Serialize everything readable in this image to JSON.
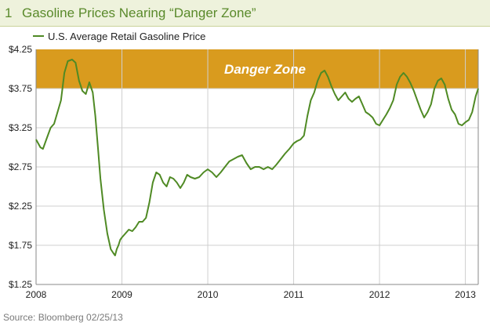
{
  "header": {
    "figure_number": "1",
    "title": "Gasoline Prices Nearing “Danger Zone”"
  },
  "source": "Source: Bloomberg   02/25/13",
  "colors": {
    "line": "#4f8a24",
    "danger_zone": "#d99b1e",
    "danger_text": "#ffffff",
    "grid": "#cfcfcf",
    "header_bg": "#eef2dc",
    "header_text": "#5a8a2b"
  },
  "chart_data": {
    "type": "line",
    "legend": "U.S. Average Retail Gasoline Price",
    "legend_position": "top-left",
    "grid": true,
    "ylim": [
      1.25,
      4.25
    ],
    "yticks": [
      1.25,
      1.75,
      2.25,
      2.75,
      3.25,
      3.75,
      4.25
    ],
    "ytick_labels": [
      "$1.25",
      "$1.75",
      "$2.25",
      "$2.75",
      "$3.25",
      "$3.75",
      "$4.25"
    ],
    "xlim": [
      2008.0,
      2013.15
    ],
    "xticks": [
      2008,
      2009,
      2010,
      2011,
      2012,
      2013
    ],
    "xtick_labels": [
      "2008",
      "2009",
      "2010",
      "2011",
      "2012",
      "2013"
    ],
    "annotations": [
      {
        "label": "Danger Zone",
        "y_from": 3.75,
        "y_to": 4.25
      }
    ],
    "series": [
      {
        "name": "U.S. Average Retail Gasoline Price",
        "x": [
          2008.0,
          2008.05,
          2008.08,
          2008.12,
          2008.17,
          2008.21,
          2008.25,
          2008.29,
          2008.33,
          2008.37,
          2008.42,
          2008.46,
          2008.5,
          2008.54,
          2008.58,
          2008.62,
          2008.66,
          2008.69,
          2008.72,
          2008.75,
          2008.79,
          2008.83,
          2008.87,
          2008.9,
          2008.92,
          2008.94,
          2008.96,
          2008.98,
          2009.0,
          2009.04,
          2009.08,
          2009.12,
          2009.16,
          2009.2,
          2009.24,
          2009.28,
          2009.32,
          2009.36,
          2009.4,
          2009.44,
          2009.48,
          2009.52,
          2009.56,
          2009.6,
          2009.64,
          2009.68,
          2009.72,
          2009.76,
          2009.8,
          2009.85,
          2009.9,
          2009.95,
          2010.0,
          2010.05,
          2010.1,
          2010.15,
          2010.2,
          2010.25,
          2010.3,
          2010.35,
          2010.4,
          2010.45,
          2010.5,
          2010.55,
          2010.6,
          2010.65,
          2010.7,
          2010.75,
          2010.8,
          2010.85,
          2010.9,
          2010.95,
          2011.0,
          2011.04,
          2011.08,
          2011.12,
          2011.16,
          2011.2,
          2011.24,
          2011.28,
          2011.32,
          2011.36,
          2011.4,
          2011.44,
          2011.48,
          2011.52,
          2011.56,
          2011.6,
          2011.64,
          2011.68,
          2011.72,
          2011.76,
          2011.8,
          2011.84,
          2011.88,
          2011.92,
          2011.96,
          2012.0,
          2012.04,
          2012.08,
          2012.12,
          2012.16,
          2012.2,
          2012.24,
          2012.28,
          2012.32,
          2012.36,
          2012.4,
          2012.44,
          2012.48,
          2012.52,
          2012.56,
          2012.6,
          2012.64,
          2012.68,
          2012.72,
          2012.76,
          2012.8,
          2012.84,
          2012.88,
          2012.92,
          2012.96,
          2013.0,
          2013.04,
          2013.08,
          2013.12,
          2013.15
        ],
        "y": [
          3.1,
          3.0,
          2.98,
          3.1,
          3.25,
          3.3,
          3.45,
          3.6,
          3.95,
          4.1,
          4.12,
          4.08,
          3.85,
          3.72,
          3.68,
          3.83,
          3.7,
          3.4,
          3.0,
          2.6,
          2.2,
          1.9,
          1.7,
          1.65,
          1.62,
          1.7,
          1.75,
          1.82,
          1.85,
          1.9,
          1.95,
          1.93,
          1.98,
          2.05,
          2.05,
          2.1,
          2.3,
          2.55,
          2.68,
          2.65,
          2.55,
          2.5,
          2.62,
          2.6,
          2.55,
          2.48,
          2.55,
          2.65,
          2.62,
          2.6,
          2.62,
          2.68,
          2.72,
          2.68,
          2.62,
          2.68,
          2.75,
          2.82,
          2.85,
          2.88,
          2.9,
          2.8,
          2.72,
          2.75,
          2.75,
          2.72,
          2.75,
          2.72,
          2.78,
          2.85,
          2.92,
          2.98,
          3.05,
          3.08,
          3.1,
          3.15,
          3.4,
          3.6,
          3.7,
          3.85,
          3.95,
          3.98,
          3.9,
          3.78,
          3.68,
          3.6,
          3.65,
          3.7,
          3.62,
          3.58,
          3.62,
          3.65,
          3.55,
          3.45,
          3.42,
          3.38,
          3.3,
          3.28,
          3.35,
          3.42,
          3.5,
          3.6,
          3.8,
          3.9,
          3.95,
          3.9,
          3.82,
          3.72,
          3.6,
          3.48,
          3.38,
          3.45,
          3.55,
          3.75,
          3.85,
          3.88,
          3.8,
          3.62,
          3.48,
          3.42,
          3.3,
          3.28,
          3.32,
          3.35,
          3.45,
          3.65,
          3.75
        ]
      }
    ]
  }
}
